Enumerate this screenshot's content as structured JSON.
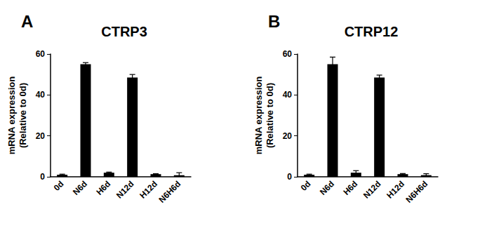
{
  "chart_data": [
    {
      "type": "bar",
      "title": "CTRP3",
      "annotations": [
        "A"
      ],
      "ylabel": "mRNA expression\n(Relative to 0d)",
      "categories": [
        "0d",
        "N6d",
        "H6d",
        "N12d",
        "H12d",
        "N6H6d"
      ],
      "values": [
        1,
        55,
        2,
        48.5,
        1.3,
        0.8
      ],
      "errors": [
        0.3,
        0.8,
        0.3,
        1.5,
        0.2,
        1.2
      ],
      "color": "#000000",
      "ylim": [
        0,
        60
      ],
      "yticks": [
        0,
        20,
        40,
        60
      ],
      "grid": false
    },
    {
      "type": "bar",
      "title": "CTRP12",
      "annotations": [
        "B"
      ],
      "ylabel": "mRNA expression\n(Relative to 0d)",
      "categories": [
        "0d",
        "N6d",
        "H6d",
        "N12d",
        "H12d",
        "N6H6d"
      ],
      "values": [
        1,
        55,
        2,
        48.5,
        1.3,
        0.8
      ],
      "errors": [
        0.3,
        3.5,
        1.0,
        1.2,
        0.3,
        0.7
      ],
      "color": "#000000",
      "ylim": [
        0,
        60
      ],
      "yticks": [
        0,
        20,
        40,
        60
      ],
      "grid": false
    }
  ]
}
